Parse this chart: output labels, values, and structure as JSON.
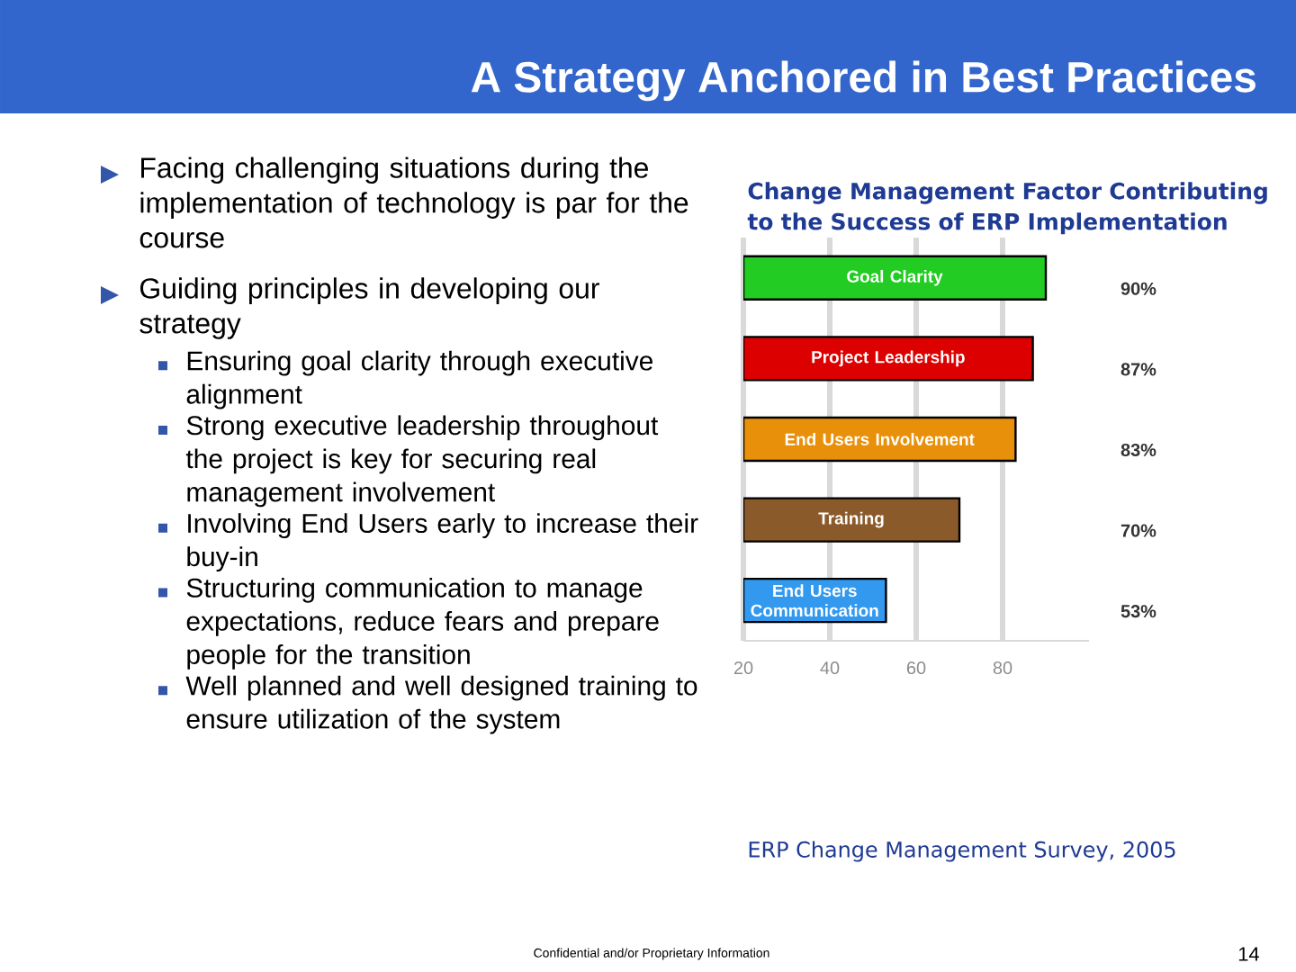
{
  "chart_data": {
    "type": "bar",
    "orientation": "horizontal",
    "title": "Change Management Factor Contributing to the Success of ERP Implementation",
    "categories": [
      "Goal Clarity",
      "Project Leadership",
      "End Users Involvement",
      "Training",
      "End Users Communication"
    ],
    "values": [
      90,
      87,
      83,
      70,
      53
    ],
    "colors": [
      "#22cc22",
      "#dd0000",
      "#e8900a",
      "#8b5a2b",
      "#3399ee"
    ],
    "value_labels": [
      "90%",
      "87%",
      "83%",
      "70%",
      "53%"
    ],
    "xlim": [
      20,
      100
    ],
    "xticks": [
      20,
      40,
      60,
      80
    ],
    "grid": "x",
    "annotations": [
      "A Strategy Anchored in Best Practices",
      "Facing challenging situations during the implementation of technology is par for the course",
      "Guiding principles in developing our strategy",
      "Ensuring goal clarity through executive alignment",
      "Strong executive leadership throughout the project is key for securing real management involvement",
      "Involving End Users early to increase their buy-in",
      "Structuring communication to manage expectations, reduce fears and prepare people for the transition",
      "Well planned and well designed training to ensure utilization of the system",
      "ERP Change Management Survey, 2005",
      "Confidential and/or Proprietary Information",
      "14"
    ]
  }
}
